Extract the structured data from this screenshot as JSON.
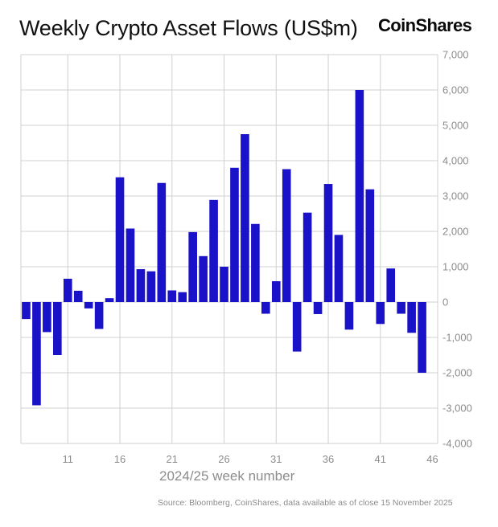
{
  "header": {
    "title": "Weekly Crypto Asset Flows (US$m)",
    "brand": "CoinShares"
  },
  "footer": {
    "source": "Source: Bloomberg, CoinShares, data available as of close 15 November 2025"
  },
  "colors": {
    "bar": "#1a12c9",
    "grid": "#d0d0d0",
    "tick_text": "#8c8c8c"
  },
  "chart_data": {
    "type": "bar",
    "xlabel": "2024/25 week number",
    "ylabel": "",
    "ylim": [
      -4000,
      7000
    ],
    "yticks": [
      7000,
      6000,
      5000,
      4000,
      3000,
      2000,
      1000,
      0,
      -1000,
      -2000,
      -3000,
      -4000
    ],
    "ytick_labels": [
      "7,000",
      "6,000",
      "5,000",
      "4,000",
      "3,000",
      "2,000",
      "1,000",
      "0",
      "-1,000",
      "-2,000",
      "-3,000",
      "-4,000"
    ],
    "xtick_labels": [
      "11",
      "16",
      "21",
      "26",
      "31",
      "36",
      "41",
      "46"
    ],
    "xtick_weeks": [
      11,
      16,
      21,
      26,
      31,
      36,
      41,
      46
    ],
    "grid": true,
    "weeks": [
      7,
      8,
      9,
      10,
      11,
      12,
      13,
      14,
      15,
      16,
      17,
      18,
      19,
      20,
      21,
      22,
      23,
      24,
      25,
      26,
      27,
      28,
      29,
      30,
      31,
      32,
      33,
      34,
      35,
      36,
      37,
      38,
      39,
      40,
      41,
      42,
      43,
      44,
      45,
      46
    ],
    "values": [
      -480,
      -2920,
      -850,
      -1500,
      660,
      320,
      -180,
      -760,
      110,
      3530,
      2080,
      930,
      870,
      3370,
      330,
      280,
      1980,
      1300,
      2890,
      1000,
      3800,
      4750,
      2210,
      -330,
      590,
      3760,
      -1400,
      2530,
      -340,
      3340,
      1900,
      -780,
      6000,
      3190,
      -620,
      950,
      -330,
      -870,
      -2000,
      0
    ]
  }
}
